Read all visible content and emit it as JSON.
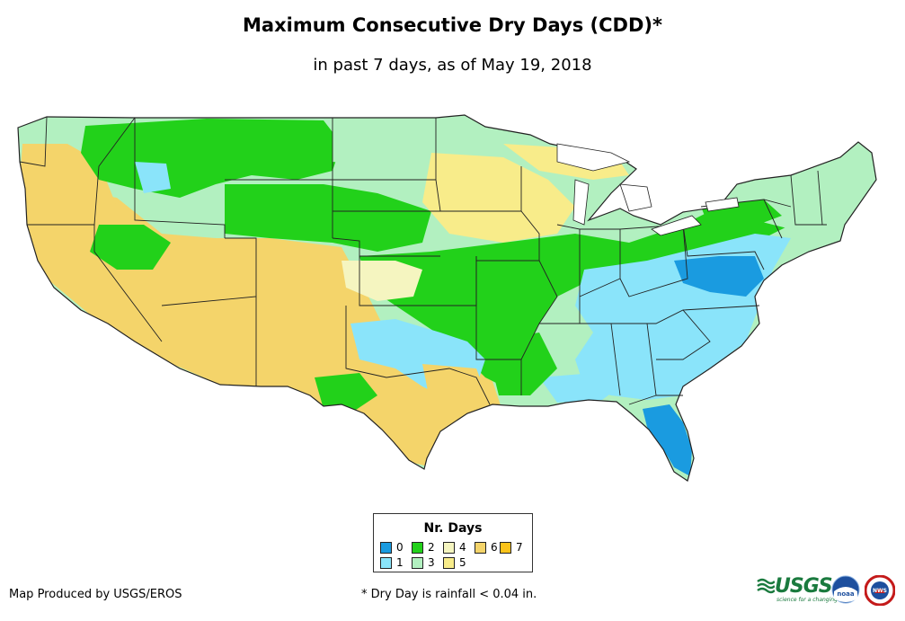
{
  "title": "Maximum Consecutive Dry Days (CDD)*",
  "subtitle": "in past 7 days, as of May 19, 2018",
  "legend": {
    "title": "Nr. Days",
    "items": [
      {
        "label": "0",
        "color": "#1a9be0"
      },
      {
        "label": "1",
        "color": "#8ae4fa"
      },
      {
        "label": "2",
        "color": "#22d11a"
      },
      {
        "label": "3",
        "color": "#b2f0c0"
      },
      {
        "label": "4",
        "color": "#f5f5c0"
      },
      {
        "label": "5",
        "color": "#f8ec8a"
      },
      {
        "label": "6",
        "color": "#f4d46a"
      },
      {
        "label": "7",
        "color": "#fbc31a"
      }
    ]
  },
  "footer": {
    "credit": "Map Produced by USGS/EROS",
    "note": "* Dry Day is rainfall < 0.04 in."
  },
  "logos": {
    "usgs": "USGS",
    "usgs_tagline": "science for a changing world",
    "noaa": "noaa",
    "nws": "NWS"
  }
}
